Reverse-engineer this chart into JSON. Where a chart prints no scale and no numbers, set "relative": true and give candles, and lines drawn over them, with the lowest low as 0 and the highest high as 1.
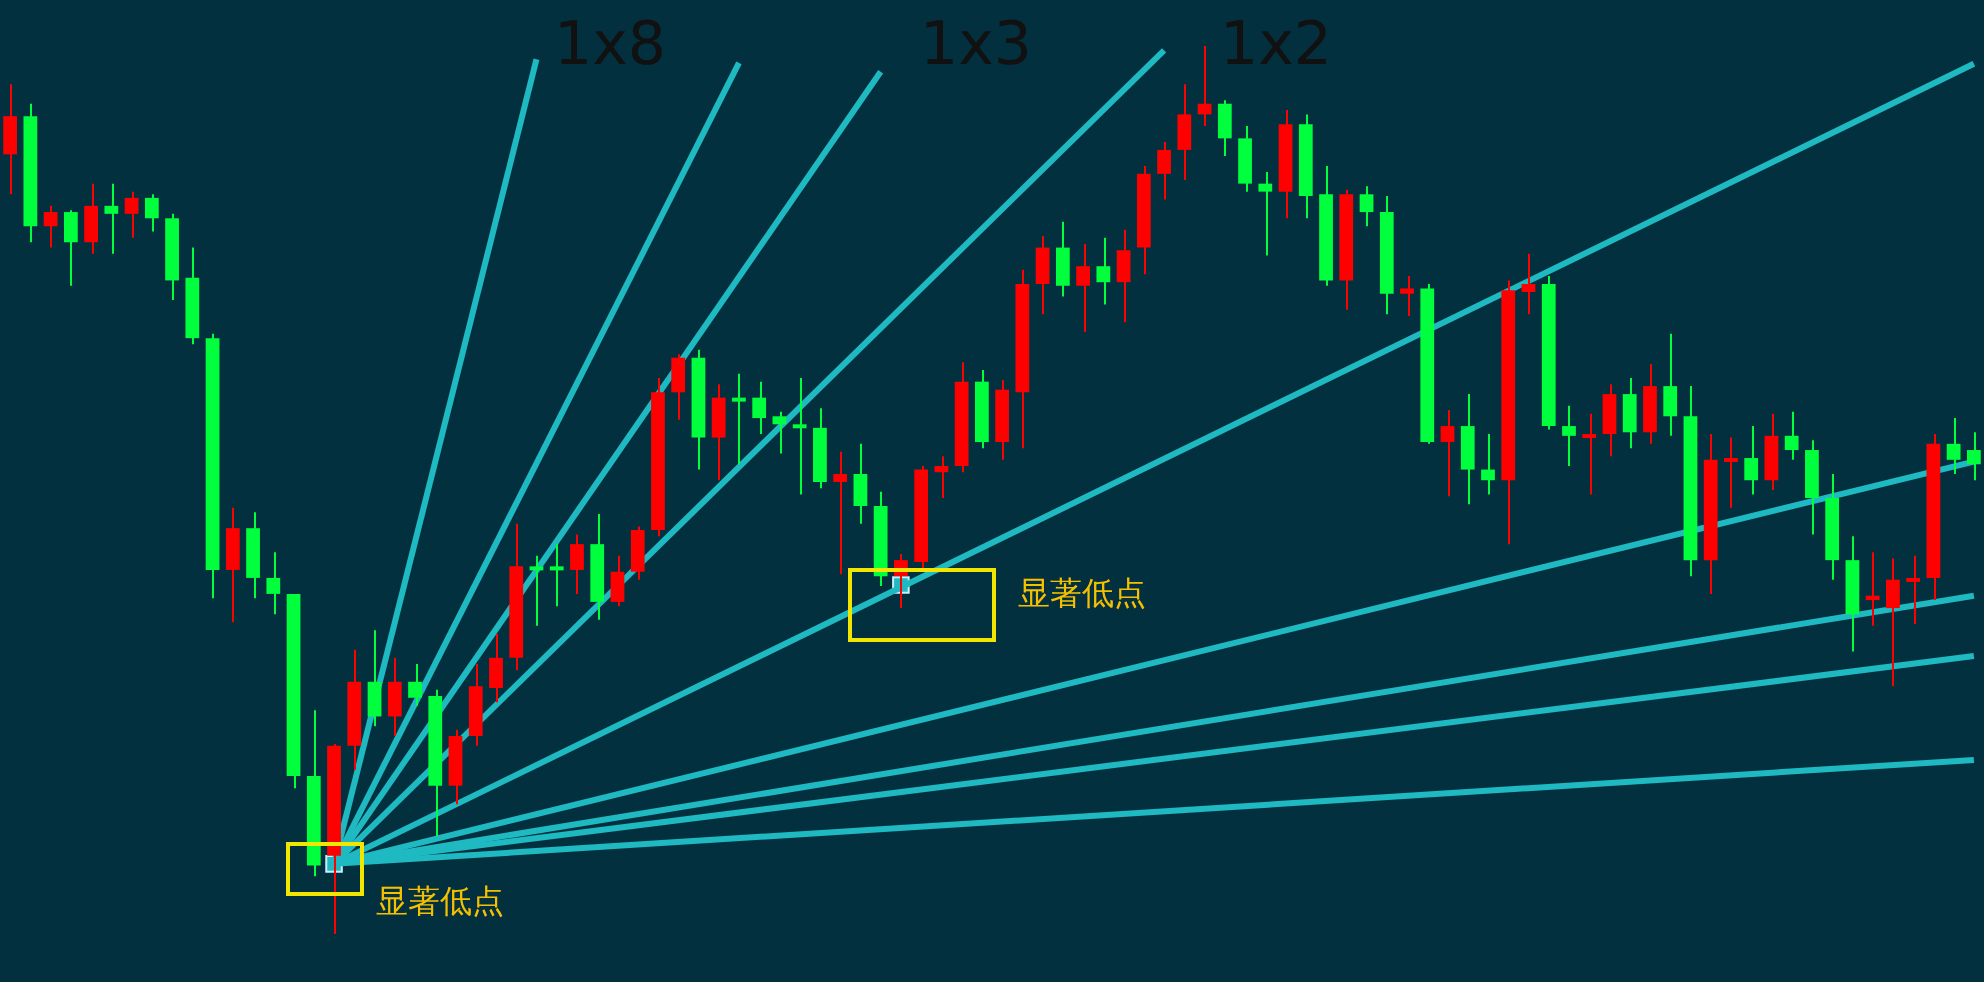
{
  "chart_data": {
    "type": "candlestick",
    "relative": true,
    "categories": [
      null,
      null,
      null,
      null,
      null,
      null,
      null,
      null,
      null,
      null,
      null,
      null,
      null,
      null,
      null,
      null,
      null,
      null,
      null,
      null,
      null,
      null,
      null,
      null,
      null,
      null,
      null,
      null,
      null,
      null,
      null,
      null,
      null,
      null,
      null,
      null,
      null,
      null,
      null,
      null,
      null,
      null,
      null,
      null,
      null,
      null,
      null,
      null,
      null,
      null,
      null,
      null,
      null,
      null,
      null,
      null,
      null,
      null,
      null,
      null,
      null,
      null,
      null,
      null,
      null,
      null,
      null,
      null,
      null,
      null,
      null,
      null,
      null,
      null,
      null,
      null,
      null,
      null,
      null,
      null,
      null,
      null,
      null,
      null,
      null,
      null,
      null,
      null,
      null,
      null,
      null,
      null,
      null,
      null,
      null,
      null,
      null,
      null
    ],
    "ohlc": [
      [
        0.878,
        0.957,
        0.833,
        0.921
      ],
      [
        0.921,
        0.935,
        0.779,
        0.797
      ],
      [
        0.797,
        0.82,
        0.773,
        0.813
      ],
      [
        0.813,
        0.815,
        0.73,
        0.779
      ],
      [
        0.779,
        0.845,
        0.766,
        0.82
      ],
      [
        0.82,
        0.845,
        0.766,
        0.811
      ],
      [
        0.811,
        0.836,
        0.784,
        0.829
      ],
      [
        0.829,
        0.833,
        0.791,
        0.806
      ],
      [
        0.806,
        0.811,
        0.714,
        0.736
      ],
      [
        0.739,
        0.773,
        0.664,
        0.671
      ],
      [
        0.671,
        0.676,
        0.378,
        0.41
      ],
      [
        0.41,
        0.48,
        0.351,
        0.457
      ],
      [
        0.457,
        0.475,
        0.378,
        0.401
      ],
      [
        0.401,
        0.43,
        0.36,
        0.383
      ],
      [
        0.383,
        0.383,
        0.164,
        0.178
      ],
      [
        0.178,
        0.252,
        0.065,
        0.077
      ],
      [
        0.088,
        0.214,
        0,
        0.212
      ],
      [
        0.212,
        0.32,
        0.185,
        0.284
      ],
      [
        0.284,
        0.342,
        0.234,
        0.245
      ],
      [
        0.245,
        0.311,
        0.223,
        0.284
      ],
      [
        0.284,
        0.304,
        0.257,
        0.266
      ],
      [
        0.268,
        0.275,
        0.11,
        0.167
      ],
      [
        0.167,
        0.23,
        0.146,
        0.223
      ],
      [
        0.223,
        0.304,
        0.212,
        0.279
      ],
      [
        0.277,
        0.338,
        0.261,
        0.311
      ],
      [
        0.311,
        0.462,
        0.297,
        0.414
      ],
      [
        0.414,
        0.426,
        0.347,
        0.412
      ],
      [
        0.414,
        0.439,
        0.369,
        0.41
      ],
      [
        0.41,
        0.45,
        0.383,
        0.439
      ],
      [
        0.439,
        0.473,
        0.354,
        0.374
      ],
      [
        0.374,
        0.426,
        0.369,
        0.408
      ],
      [
        0.408,
        0.459,
        0.399,
        0.455
      ],
      [
        0.455,
        0.626,
        0.448,
        0.61
      ],
      [
        0.61,
        0.653,
        0.579,
        0.649
      ],
      [
        0.649,
        0.658,
        0.523,
        0.559
      ],
      [
        0.559,
        0.619,
        0.511,
        0.604
      ],
      [
        0.604,
        0.631,
        0.529,
        0.601
      ],
      [
        0.604,
        0.622,
        0.563,
        0.581
      ],
      [
        0.583,
        0.588,
        0.541,
        0.574
      ],
      [
        0.574,
        0.626,
        0.495,
        0.57
      ],
      [
        0.57,
        0.592,
        0.502,
        0.509
      ],
      [
        0.509,
        0.543,
        0.405,
        0.518
      ],
      [
        0.518,
        0.552,
        0.462,
        0.482
      ],
      [
        0.482,
        0.498,
        0.392,
        0.403
      ],
      [
        0.403,
        0.428,
        0.367,
        0.421
      ],
      [
        0.419,
        0.527,
        0.41,
        0.523
      ],
      [
        0.52,
        0.538,
        0.491,
        0.527
      ],
      [
        0.527,
        0.644,
        0.52,
        0.622
      ],
      [
        0.622,
        0.635,
        0.547,
        0.554
      ],
      [
        0.554,
        0.624,
        0.534,
        0.613
      ],
      [
        0.61,
        0.748,
        0.547,
        0.732
      ],
      [
        0.732,
        0.786,
        0.698,
        0.773
      ],
      [
        0.773,
        0.802,
        0.718,
        0.73
      ],
      [
        0.73,
        0.777,
        0.678,
        0.752
      ],
      [
        0.752,
        0.784,
        0.709,
        0.734
      ],
      [
        0.734,
        0.793,
        0.689,
        0.77
      ],
      [
        0.773,
        0.865,
        0.743,
        0.856
      ],
      [
        0.856,
        0.892,
        0.827,
        0.883
      ],
      [
        0.883,
        0.957,
        0.849,
        0.923
      ],
      [
        0.923,
        1,
        0.91,
        0.935
      ],
      [
        0.935,
        0.939,
        0.876,
        0.896
      ],
      [
        0.896,
        0.91,
        0.836,
        0.845
      ],
      [
        0.845,
        0.858,
        0.764,
        0.836
      ],
      [
        0.836,
        0.928,
        0.806,
        0.912
      ],
      [
        0.912,
        0.923,
        0.806,
        0.831
      ],
      [
        0.833,
        0.865,
        0.73,
        0.736
      ],
      [
        0.736,
        0.838,
        0.703,
        0.833
      ],
      [
        0.833,
        0.842,
        0.797,
        0.813
      ],
      [
        0.813,
        0.831,
        0.698,
        0.721
      ],
      [
        0.721,
        0.741,
        0.696,
        0.727
      ],
      [
        0.727,
        0.732,
        0.552,
        0.554
      ],
      [
        0.554,
        0.59,
        0.493,
        0.572
      ],
      [
        0.572,
        0.608,
        0.484,
        0.523
      ],
      [
        0.523,
        0.563,
        0.495,
        0.511
      ],
      [
        0.511,
        0.736,
        0.439,
        0.725
      ],
      [
        0.723,
        0.766,
        0.698,
        0.732
      ],
      [
        0.732,
        0.741,
        0.568,
        0.572
      ],
      [
        0.572,
        0.595,
        0.527,
        0.561
      ],
      [
        0.561,
        0.586,
        0.495,
        0.563
      ],
      [
        0.563,
        0.619,
        0.538,
        0.608
      ],
      [
        0.608,
        0.626,
        0.547,
        0.565
      ],
      [
        0.565,
        0.642,
        0.552,
        0.617
      ],
      [
        0.617,
        0.676,
        0.561,
        0.583
      ],
      [
        0.583,
        0.617,
        0.403,
        0.421
      ],
      [
        0.421,
        0.563,
        0.383,
        0.534
      ],
      [
        0.532,
        0.559,
        0.48,
        0.536
      ],
      [
        0.536,
        0.572,
        0.495,
        0.511
      ],
      [
        0.511,
        0.586,
        0.5,
        0.561
      ],
      [
        0.561,
        0.588,
        0.534,
        0.545
      ],
      [
        0.545,
        0.556,
        0.45,
        0.491
      ],
      [
        0.491,
        0.518,
        0.399,
        0.421
      ],
      [
        0.421,
        0.448,
        0.318,
        0.36
      ],
      [
        0.376,
        0.43,
        0.347,
        0.381
      ],
      [
        0.367,
        0.423,
        0.279,
        0.399
      ],
      [
        0.399,
        0.426,
        0.349,
        0.401
      ],
      [
        0.401,
        0.563,
        0.376,
        0.552
      ],
      [
        0.552,
        0.581,
        0.518,
        0.534
      ],
      [
        0.545,
        0.565,
        0.511,
        0.529
      ]
    ],
    "colors": [
      "#ff0000",
      "#00ff3c",
      "#ff0000",
      "#00ff3c",
      "#ff0000",
      "#00ff3c",
      "#ff0000",
      "#00ff3c",
      "#00ff3c",
      "#00ff3c",
      "#00ff3c",
      "#ff0000",
      "#00ff3c",
      "#00ff3c",
      "#00ff3c",
      "#00ff3c",
      "#ff0000",
      "#ff0000",
      "#00ff3c",
      "#ff0000",
      "#00ff3c",
      "#00ff3c",
      "#ff0000",
      "#ff0000",
      "#ff0000",
      "#ff0000",
      "#00ff3c",
      "#00ff3c",
      "#ff0000",
      "#00ff3c",
      "#ff0000",
      "#ff0000",
      "#ff0000",
      "#ff0000",
      "#00ff3c",
      "#ff0000",
      "#00ff3c",
      "#00ff3c",
      "#00ff3c",
      "#00ff3c",
      "#00ff3c",
      "#ff0000",
      "#00ff3c",
      "#00ff3c",
      "#ff0000",
      "#ff0000",
      "#ff0000",
      "#ff0000",
      "#00ff3c",
      "#ff0000",
      "#ff0000",
      "#ff0000",
      "#00ff3c",
      "#ff0000",
      "#00ff3c",
      "#ff0000",
      "#ff0000",
      "#ff0000",
      "#ff0000",
      "#ff0000",
      "#00ff3c",
      "#00ff3c",
      "#00ff3c",
      "#ff0000",
      "#00ff3c",
      "#00ff3c",
      "#ff0000",
      "#00ff3c",
      "#00ff3c",
      "#ff0000",
      "#00ff3c",
      "#ff0000",
      "#00ff3c",
      "#00ff3c",
      "#ff0000",
      "#ff0000",
      "#00ff3c",
      "#00ff3c",
      "#ff0000",
      "#ff0000",
      "#00ff3c",
      "#ff0000",
      "#00ff3c",
      "#00ff3c",
      "#ff0000",
      "#ff0000",
      "#00ff3c",
      "#ff0000",
      "#00ff3c",
      "#00ff3c",
      "#00ff3c",
      "#00ff3c",
      "#ff0000",
      "#ff0000",
      "#ff0000",
      "#ff0000",
      "#00ff3c",
      "#00ff3c"
    ],
    "series": [
      {
        "type": "line",
        "color": "#1fb9c2",
        "values": [
          null,
          null,
          null,
          null,
          null,
          null,
          null,
          null,
          null,
          null,
          null,
          null,
          null,
          null,
          null,
          null,
          0.079,
          null,
          null,
          null,
          null,
          null,
          null,
          null,
          null,
          null,
          0.985,
          null,
          null,
          null,
          null,
          null,
          null,
          null,
          null,
          null,
          null,
          null,
          null,
          null,
          null,
          null,
          null,
          null,
          null,
          null,
          null,
          null,
          null,
          null,
          null,
          null,
          null,
          null,
          null,
          null,
          null,
          null,
          null,
          null,
          null,
          null,
          null,
          null,
          null,
          null,
          null,
          null,
          null,
          null,
          null,
          null,
          null,
          null,
          null,
          null,
          null,
          null,
          null,
          null,
          null,
          null,
          null,
          null,
          null,
          null,
          null,
          null,
          null,
          null,
          null,
          null,
          null,
          null,
          null,
          null,
          null,
          null
        ]
      },
      {
        "type": "line",
        "color": "#1fb9c2",
        "values": [
          null,
          null,
          null,
          null,
          null,
          null,
          null,
          null,
          null,
          null,
          null,
          null,
          null,
          null,
          null,
          null,
          0.079,
          null,
          null,
          null,
          null,
          null,
          null,
          null,
          null,
          null,
          null,
          null,
          null,
          null,
          null,
          null,
          null,
          null,
          null,
          null,
          0.981,
          null,
          null,
          null,
          null,
          null,
          null,
          null,
          null,
          null,
          null,
          null,
          null,
          null,
          null,
          null,
          null,
          null,
          null,
          null,
          null,
          null,
          null,
          null,
          null,
          null,
          null,
          null,
          null,
          null,
          null,
          null,
          null,
          null,
          null,
          null,
          null,
          null,
          null,
          null,
          null,
          null,
          null,
          null,
          null,
          null,
          null,
          null,
          null,
          null,
          null,
          null,
          null,
          null,
          null,
          null,
          null,
          null,
          null,
          null,
          null,
          null
        ]
      },
      {
        "type": "line",
        "color": "#1fb9c2",
        "values": [
          null,
          null,
          null,
          null,
          null,
          null,
          null,
          null,
          null,
          null,
          null,
          null,
          null,
          null,
          null,
          null,
          0.079,
          null,
          null,
          null,
          null,
          null,
          null,
          null,
          null,
          null,
          null,
          null,
          null,
          null,
          null,
          null,
          null,
          null,
          null,
          null,
          null,
          null,
          null,
          null,
          null,
          null,
          null,
          0.971,
          null,
          null,
          null,
          null,
          null,
          null,
          null,
          null,
          null,
          null,
          null,
          null,
          null,
          null,
          null,
          null,
          null,
          null,
          null,
          null,
          null,
          null,
          null,
          null,
          null,
          null,
          null,
          null,
          null,
          null,
          null,
          null,
          null,
          null,
          null,
          null,
          null,
          null,
          null,
          null,
          null,
          null,
          null,
          null,
          null,
          null,
          null,
          null,
          null,
          null,
          null,
          null,
          null,
          null
        ]
      },
      {
        "type": "line",
        "color": "#1fb9c2",
        "values": [
          null,
          null,
          null,
          null,
          null,
          null,
          null,
          null,
          null,
          null,
          null,
          null,
          null,
          null,
          null,
          null,
          0.079,
          null,
          null,
          null,
          null,
          null,
          null,
          null,
          null,
          null,
          null,
          null,
          null,
          null,
          null,
          null,
          null,
          null,
          null,
          null,
          null,
          null,
          null,
          null,
          null,
          null,
          null,
          null,
          null,
          null,
          null,
          null,
          null,
          null,
          null,
          null,
          null,
          null,
          null,
          null,
          null,
          0.995,
          null,
          null,
          null,
          null,
          null,
          null,
          null,
          null,
          null,
          null,
          null,
          null,
          null,
          null,
          null,
          null,
          null,
          null,
          null,
          null,
          null,
          null,
          null,
          null,
          null,
          null,
          null,
          null,
          null,
          null,
          null,
          null,
          null,
          null,
          null,
          null,
          null,
          null,
          null,
          null
        ]
      },
      {
        "type": "line",
        "color": "#1fb9c2",
        "values": [
          null,
          null,
          null,
          null,
          null,
          null,
          null,
          null,
          null,
          null,
          null,
          null,
          null,
          null,
          null,
          null,
          0.079,
          null,
          null,
          null,
          null,
          null,
          null,
          null,
          null,
          null,
          null,
          null,
          null,
          null,
          null,
          null,
          null,
          null,
          null,
          null,
          null,
          null,
          null,
          null,
          null,
          null,
          null,
          null,
          null,
          null,
          null,
          null,
          null,
          null,
          null,
          null,
          null,
          null,
          null,
          null,
          null,
          null,
          null,
          null,
          null,
          null,
          null,
          null,
          null,
          null,
          null,
          null,
          null,
          null,
          null,
          null,
          null,
          null,
          null,
          null,
          null,
          null,
          null,
          null,
          null,
          null,
          null,
          null,
          null,
          null,
          null,
          null,
          null,
          null,
          null,
          null,
          null,
          null,
          null,
          null,
          null,
          0.98
        ]
      },
      {
        "type": "line",
        "color": "#1fb9c2",
        "values": [
          null,
          null,
          null,
          null,
          null,
          null,
          null,
          null,
          null,
          null,
          null,
          null,
          null,
          null,
          null,
          null,
          0.079,
          null,
          null,
          null,
          null,
          null,
          null,
          null,
          null,
          null,
          null,
          null,
          null,
          null,
          null,
          null,
          null,
          null,
          null,
          null,
          null,
          null,
          null,
          null,
          null,
          null,
          null,
          null,
          null,
          null,
          null,
          null,
          null,
          null,
          null,
          null,
          null,
          null,
          null,
          null,
          null,
          null,
          null,
          null,
          null,
          null,
          null,
          null,
          null,
          null,
          null,
          null,
          null,
          null,
          null,
          null,
          null,
          null,
          null,
          null,
          null,
          null,
          null,
          null,
          null,
          null,
          null,
          null,
          null,
          null,
          null,
          null,
          null,
          null,
          null,
          null,
          null,
          null,
          null,
          null,
          null,
          0.532
        ]
      },
      {
        "type": "line",
        "color": "#1fb9c2",
        "values": [
          null,
          null,
          null,
          null,
          null,
          null,
          null,
          null,
          null,
          null,
          null,
          null,
          null,
          null,
          null,
          null,
          0.079,
          null,
          null,
          null,
          null,
          null,
          null,
          null,
          null,
          null,
          null,
          null,
          null,
          null,
          null,
          null,
          null,
          null,
          null,
          null,
          null,
          null,
          null,
          null,
          null,
          null,
          null,
          null,
          null,
          null,
          null,
          null,
          null,
          null,
          null,
          null,
          null,
          null,
          null,
          null,
          null,
          null,
          null,
          null,
          null,
          null,
          null,
          null,
          null,
          null,
          null,
          null,
          null,
          null,
          null,
          null,
          null,
          null,
          null,
          null,
          null,
          null,
          null,
          null,
          null,
          null,
          null,
          null,
          null,
          null,
          null,
          null,
          null,
          null,
          null,
          null,
          null,
          null,
          null,
          null,
          null,
          0.381
        ]
      },
      {
        "type": "line",
        "color": "#1fb9c2",
        "values": [
          null,
          null,
          null,
          null,
          null,
          null,
          null,
          null,
          null,
          null,
          null,
          null,
          null,
          null,
          null,
          null,
          0.079,
          null,
          null,
          null,
          null,
          null,
          null,
          null,
          null,
          null,
          null,
          null,
          null,
          null,
          null,
          null,
          null,
          null,
          null,
          null,
          null,
          null,
          null,
          null,
          null,
          null,
          null,
          null,
          null,
          null,
          null,
          null,
          null,
          null,
          null,
          null,
          null,
          null,
          null,
          null,
          null,
          null,
          null,
          null,
          null,
          null,
          null,
          null,
          null,
          null,
          null,
          null,
          null,
          null,
          null,
          null,
          null,
          null,
          null,
          null,
          null,
          null,
          null,
          null,
          null,
          null,
          null,
          null,
          null,
          null,
          null,
          null,
          null,
          null,
          null,
          null,
          null,
          null,
          null,
          null,
          null,
          0.313
        ]
      },
      {
        "type": "line",
        "color": "#1fb9c2",
        "values": [
          null,
          null,
          null,
          null,
          null,
          null,
          null,
          null,
          null,
          null,
          null,
          null,
          null,
          null,
          null,
          null,
          0.079,
          null,
          null,
          null,
          null,
          null,
          null,
          null,
          null,
          null,
          null,
          null,
          null,
          null,
          null,
          null,
          null,
          null,
          null,
          null,
          null,
          null,
          null,
          null,
          null,
          null,
          null,
          null,
          null,
          null,
          null,
          null,
          null,
          null,
          null,
          null,
          null,
          null,
          null,
          null,
          null,
          null,
          null,
          null,
          null,
          null,
          null,
          null,
          null,
          null,
          null,
          null,
          null,
          null,
          null,
          null,
          null,
          null,
          null,
          null,
          null,
          null,
          null,
          null,
          null,
          null,
          null,
          null,
          null,
          null,
          null,
          null,
          null,
          null,
          null,
          null,
          null,
          null,
          null,
          null,
          null,
          0.196
        ]
      },
      {
        "type": "scatter",
        "color": "#1fb9c2",
        "marker": "square",
        "values": [
          null,
          null,
          null,
          null,
          null,
          null,
          null,
          null,
          null,
          null,
          null,
          null,
          null,
          null,
          null,
          null,
          0.079,
          null,
          null,
          null,
          null,
          null,
          null,
          null,
          null,
          null,
          null,
          null,
          null,
          null,
          null,
          null,
          null,
          null,
          null,
          null,
          null,
          null,
          null,
          null,
          null,
          null,
          null,
          null,
          0.393,
          null,
          null,
          null,
          null,
          null,
          null,
          null,
          null,
          null,
          null,
          null,
          null,
          null,
          null,
          null,
          null,
          null,
          null,
          null,
          null,
          null,
          null,
          null,
          null,
          null,
          null,
          null,
          null,
          null,
          null,
          null,
          null,
          null,
          null,
          null,
          null,
          null,
          null,
          null,
          null,
          null,
          null,
          null,
          null,
          null,
          null,
          null,
          null,
          null,
          null,
          null,
          null,
          null
        ]
      }
    ],
    "annotations": [
      "1x8",
      "1x3",
      "1x2",
      "显著低点",
      "显著低点"
    ]
  }
}
